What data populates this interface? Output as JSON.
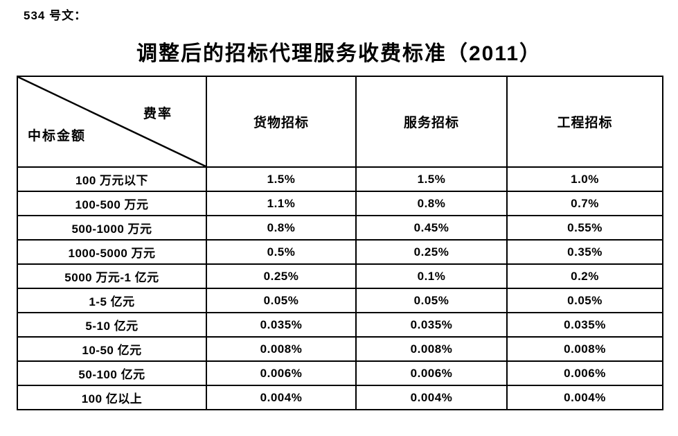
{
  "page": {
    "doc_label": "534 号文：",
    "title": "调整后的招标代理服务收费标准（2011）"
  },
  "table": {
    "corner": {
      "top_right": "费率",
      "bottom_left": "中标金额"
    },
    "columns": [
      "货物招标",
      "服务招标",
      "工程招标"
    ],
    "rows": [
      {
        "amount": "100 万元以下",
        "values": [
          "1.5%",
          "1.5%",
          "1.0%"
        ]
      },
      {
        "amount": "100-500 万元",
        "values": [
          "1.1%",
          "0.8%",
          "0.7%"
        ]
      },
      {
        "amount": "500-1000 万元",
        "values": [
          "0.8%",
          "0.45%",
          "0.55%"
        ]
      },
      {
        "amount": "1000-5000 万元",
        "values": [
          "0.5%",
          "0.25%",
          "0.35%"
        ]
      },
      {
        "amount": "5000 万元-1 亿元",
        "values": [
          "0.25%",
          "0.1%",
          "0.2%"
        ]
      },
      {
        "amount": "1-5 亿元",
        "values": [
          "0.05%",
          "0.05%",
          "0.05%"
        ]
      },
      {
        "amount": "5-10 亿元",
        "values": [
          "0.035%",
          "0.035%",
          "0.035%"
        ]
      },
      {
        "amount": "10-50 亿元",
        "values": [
          "0.008%",
          "0.008%",
          "0.008%"
        ]
      },
      {
        "amount": "50-100 亿元",
        "values": [
          "0.006%",
          "0.006%",
          "0.006%"
        ]
      },
      {
        "amount": "100 亿以上",
        "values": [
          "0.004%",
          "0.004%",
          "0.004%"
        ]
      }
    ]
  },
  "colors": {
    "text": "#000000",
    "border": "#000000",
    "background": "#ffffff"
  }
}
